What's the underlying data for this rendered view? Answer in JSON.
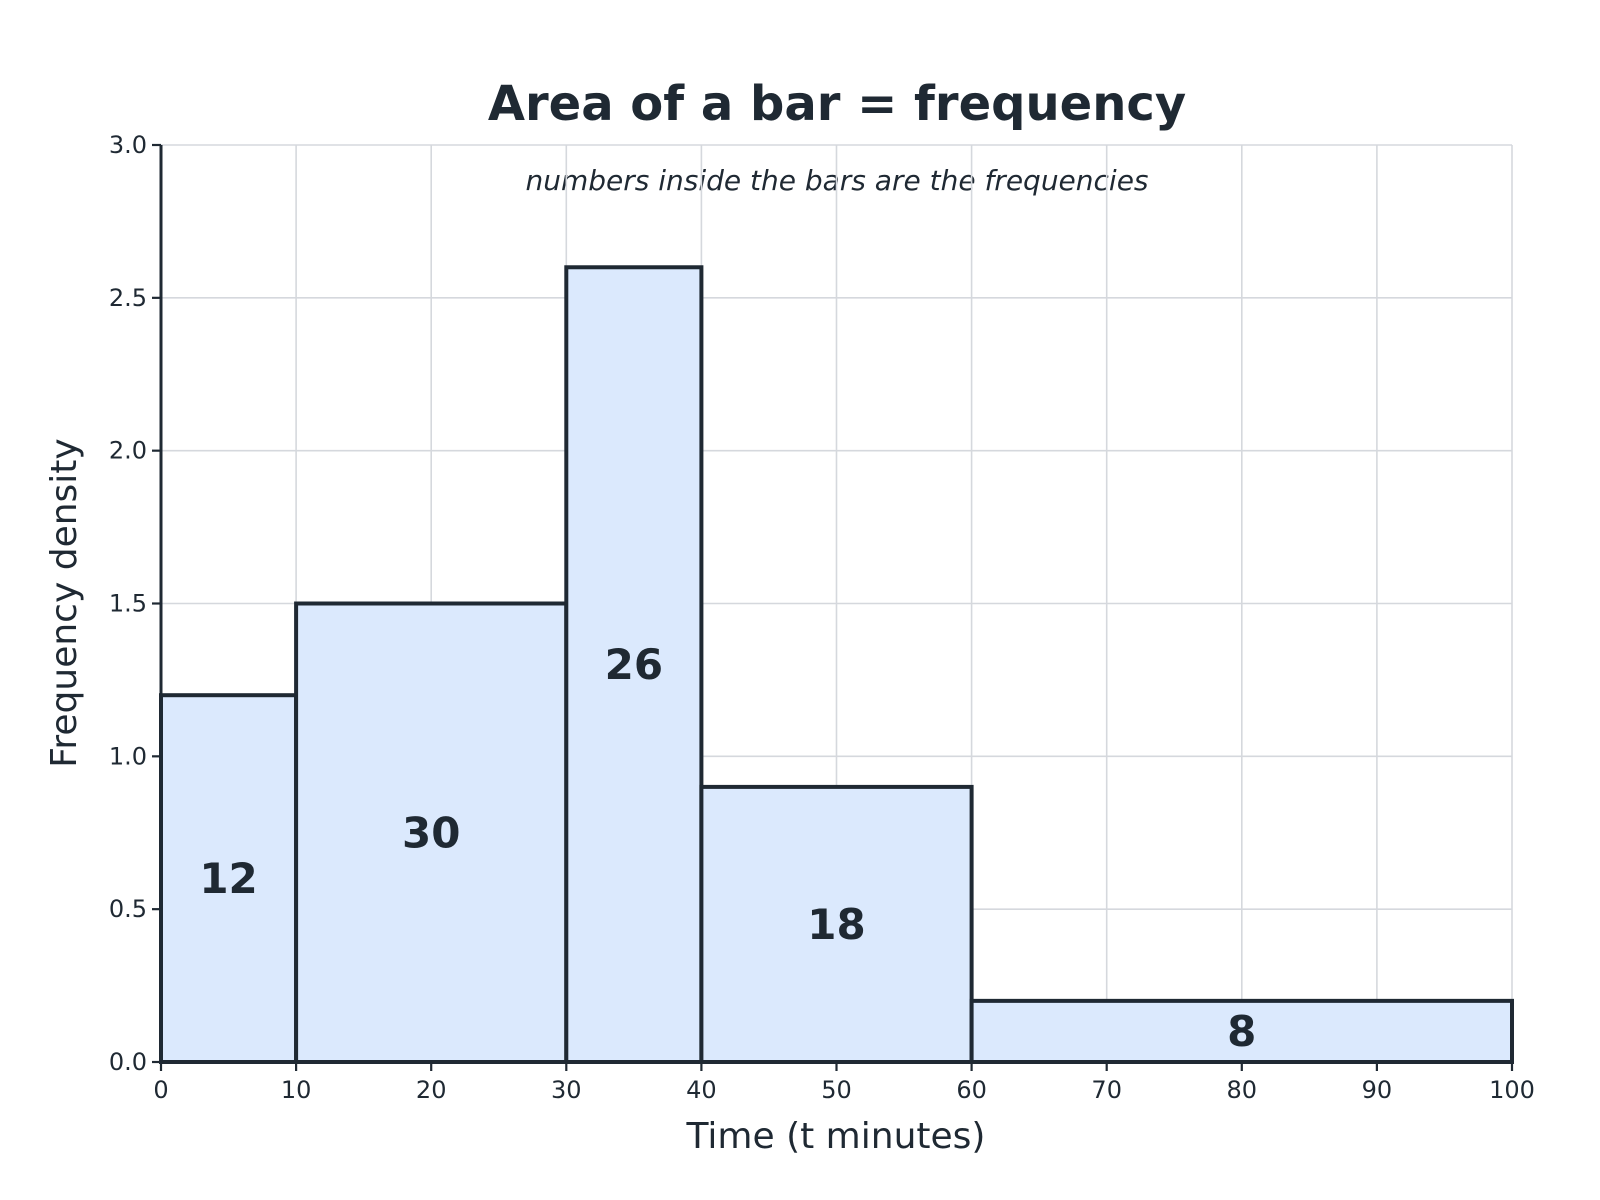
{
  "chart_data": {
    "type": "bar",
    "title": "Area of a bar = frequency",
    "subtitle": "numbers inside the bars are the frequencies",
    "xlabel": "Time (t minutes)",
    "ylabel": "Frequency density",
    "xlim": [
      0,
      100
    ],
    "ylim": [
      0,
      3.0
    ],
    "xticks": [
      "0",
      "10",
      "20",
      "30",
      "40",
      "50",
      "60",
      "70",
      "80",
      "90",
      "100"
    ],
    "yticks": [
      "0.0",
      "0.5",
      "1.0",
      "1.5",
      "2.0",
      "2.5",
      "3.0"
    ],
    "grid": true,
    "bins": [
      {
        "x_start": 0,
        "x_end": 10,
        "density": 1.2,
        "frequency": "12"
      },
      {
        "x_start": 10,
        "x_end": 30,
        "density": 1.5,
        "frequency": "30"
      },
      {
        "x_start": 30,
        "x_end": 40,
        "density": 2.6,
        "frequency": "26"
      },
      {
        "x_start": 40,
        "x_end": 60,
        "density": 0.9,
        "frequency": "18"
      },
      {
        "x_start": 60,
        "x_end": 100,
        "density": 0.2,
        "frequency": "8"
      }
    ],
    "colors": {
      "bar_fill": "#dbe9fd",
      "bar_edge": "#1f2933",
      "grid": "#d5d8dd",
      "text": "#1f2933"
    }
  }
}
